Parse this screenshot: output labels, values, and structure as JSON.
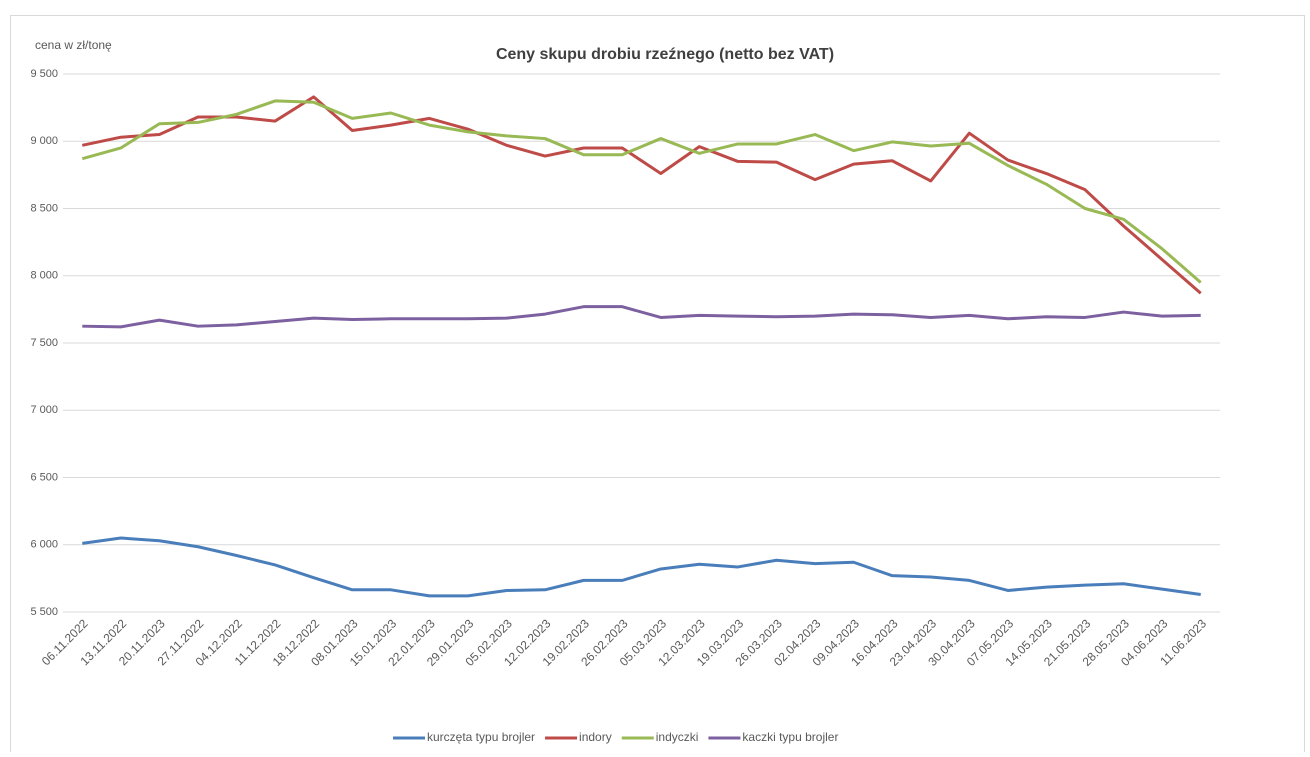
{
  "chart_data": {
    "type": "line",
    "title": "Ceny skupu drobiu rzeźnego (netto bez VAT)",
    "y_label": "cena w zł/tonę",
    "categories": [
      "06.11.2022",
      "13.11.2022",
      "20.11.2023",
      "27.11.2022",
      "04.12.2022",
      "11.12.2022",
      "18.12.2022",
      "08.01.2023",
      "15.01.2023",
      "22.01.2023",
      "29.01.2023",
      "05.02.2023",
      "12.02.2023",
      "19.02.2023",
      "26.02.2023",
      "05.03.2023",
      "12.03.2023",
      "19.03.2023",
      "26.03.2023",
      "02.04.2023",
      "09.04.2023",
      "16.04.2023",
      "23.04.2023",
      "30.04.2023",
      "07.05.2023",
      "14.05.2023",
      "21.05.2023",
      "28.05.2023",
      "04.06.2023",
      "11.06.2023"
    ],
    "series": [
      {
        "name": "kurczęta typu brojler",
        "color": "#4a7ebb",
        "values": [
          6010,
          6050,
          6030,
          5985,
          5920,
          5850,
          5755,
          5665,
          5665,
          5620,
          5620,
          5660,
          5665,
          5735,
          5735,
          5820,
          5855,
          5835,
          5885,
          5860,
          5870,
          5770,
          5760,
          5735,
          5660,
          5685,
          5700,
          5710,
          5670,
          5630
        ]
      },
      {
        "name": "indory",
        "color": "#be4b48",
        "values": [
          8970,
          9030,
          9050,
          9180,
          9180,
          9150,
          9330,
          9080,
          9120,
          9170,
          9090,
          8970,
          8890,
          8950,
          8950,
          8760,
          8960,
          8850,
          8845,
          8715,
          8830,
          8855,
          8705,
          9060,
          8860,
          8760,
          8640,
          8370,
          8120,
          7870
        ]
      },
      {
        "name": "indyczki",
        "color": "#98b954",
        "values": [
          8870,
          8950,
          9130,
          9140,
          9200,
          9300,
          9290,
          9170,
          9210,
          9120,
          9070,
          9040,
          9020,
          8900,
          8900,
          9020,
          8910,
          8980,
          8980,
          9050,
          8930,
          8995,
          8965,
          8985,
          8820,
          8680,
          8500,
          8420,
          8200,
          7950
        ]
      },
      {
        "name": "kaczki typu brojler",
        "color": "#7d60a0",
        "values": [
          7625,
          7620,
          7670,
          7625,
          7635,
          7660,
          7685,
          7675,
          7680,
          7680,
          7680,
          7685,
          7715,
          7770,
          7770,
          7690,
          7705,
          7700,
          7695,
          7700,
          7715,
          7710,
          7690,
          7705,
          7680,
          7695,
          7690,
          7730,
          7700,
          7705
        ]
      }
    ],
    "ylim": [
      5500,
      9500
    ],
    "yticks": [
      {
        "value": 5500,
        "label": "5 500"
      },
      {
        "value": 6000,
        "label": "6 000"
      },
      {
        "value": 6500,
        "label": "6 500"
      },
      {
        "value": 7000,
        "label": "7 000"
      },
      {
        "value": 7500,
        "label": "7 500"
      },
      {
        "value": 8000,
        "label": "8 000"
      },
      {
        "value": 8500,
        "label": "8 500"
      },
      {
        "value": 9000,
        "label": "9 000"
      },
      {
        "value": 9500,
        "label": "9 500"
      }
    ],
    "grid": true,
    "legend": "bottom"
  }
}
